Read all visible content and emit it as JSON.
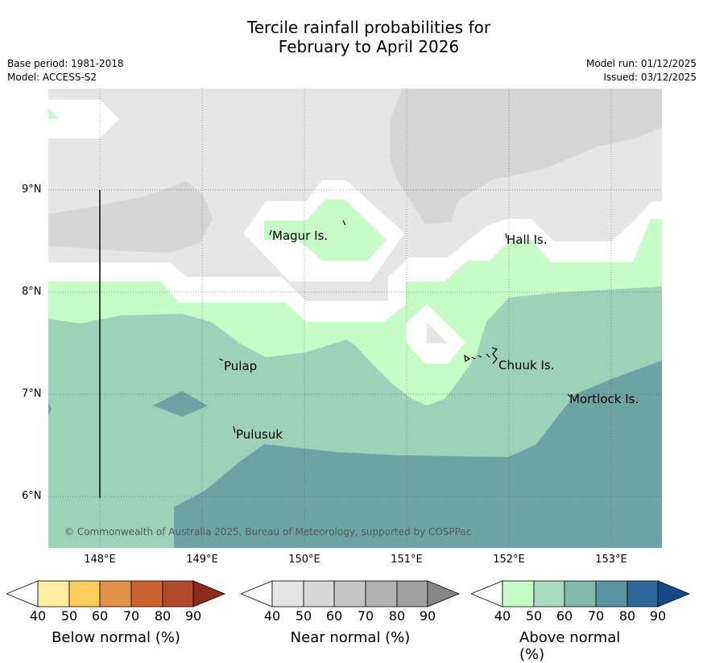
{
  "header": {
    "title_line1": "Tercile rainfall probabilities for",
    "title_line2": "February to April 2026",
    "base_period": "Base period: 1981-2018",
    "model": "Model: ACCESS-S2",
    "model_run": "Model run: 01/12/2025",
    "issued": "Issued: 03/12/2025"
  },
  "map": {
    "lat_labels": [
      "9°N",
      "8°N",
      "7°N",
      "6°N"
    ],
    "lon_labels": [
      "148°E",
      "149°E",
      "150°E",
      "151°E",
      "152°E",
      "153°E"
    ],
    "islands": [
      "Magur Is.",
      "Hall Is.",
      "Pulap",
      "Chuuk Is.",
      "Mortlock Is.",
      "Pulusuk"
    ],
    "copyright": "© Commonwealth of Australia 2025, Bureau of Meteorology, supported by COSPPac",
    "colors": {
      "near_40": "#e6e6e6",
      "near_50": "#d6d6d6",
      "above_40": "#c7fcc7",
      "above_50": "#9dd1ba",
      "above_60": "#6ea3a6"
    }
  },
  "legend": {
    "ticks": [
      "40",
      "50",
      "60",
      "70",
      "80",
      "90"
    ],
    "bars": [
      {
        "title": "Below normal (%)",
        "colors": [
          "#ffffff",
          "#ffeda0",
          "#fecc5c",
          "#e0914a",
          "#cc6333",
          "#b04a28",
          "#8c2b1c"
        ]
      },
      {
        "title": "Near normal (%)",
        "colors": [
          "#ffffff",
          "#e6e6e6",
          "#d6d6d6",
          "#c5c5c5",
          "#b2b2b2",
          "#a0a0a0",
          "#868686"
        ]
      },
      {
        "title": "Above normal (%)",
        "colors": [
          "#ffffff",
          "#c7fcc7",
          "#a8dbc0",
          "#83b8ab",
          "#5a93a2",
          "#31679a",
          "#154a85"
        ]
      }
    ]
  }
}
